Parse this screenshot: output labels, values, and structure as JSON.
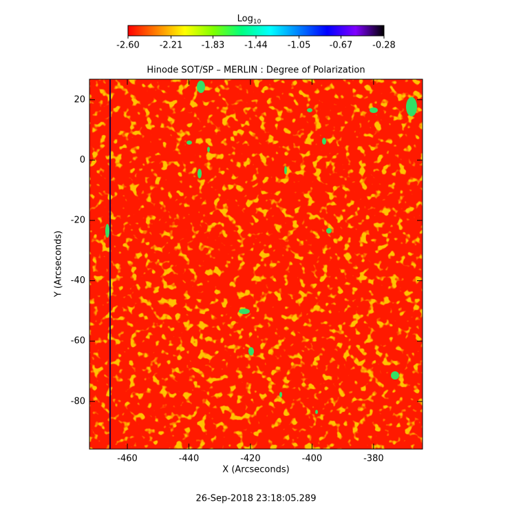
{
  "chart_data": {
    "type": "image",
    "title": "Hinode SOT/SP – MERLIN : Degree of Polarization",
    "xlabel": "X (Arcseconds)",
    "ylabel": "Y (Arcseconds)",
    "footer": "26-Sep-2018 23:18:05.289",
    "xlim": [
      -472.3,
      -364.1
    ],
    "xticks": [
      -460,
      -440,
      -420,
      -400,
      -380
    ],
    "ylim": [
      -95.8,
      26.8
    ],
    "yticks": [
      -80,
      -60,
      -40,
      -20,
      0,
      20
    ],
    "colorbar_label": "Log",
    "colorbar_label_sub": "10",
    "clim": [
      -2.6,
      -0.28
    ],
    "cticks": [
      {
        "value": -2.6,
        "label": "-2.60"
      },
      -2.21,
      -1.83,
      -1.44,
      -1.05,
      -0.67,
      -0.28
    ],
    "colormap": [
      "#ff0000",
      "#ff8000",
      "#ffff00",
      "#80ff00",
      "#00ff80",
      "#00ffff",
      "#0080ff",
      "#0000ff",
      "#8000ff",
      "#000000"
    ]
  }
}
